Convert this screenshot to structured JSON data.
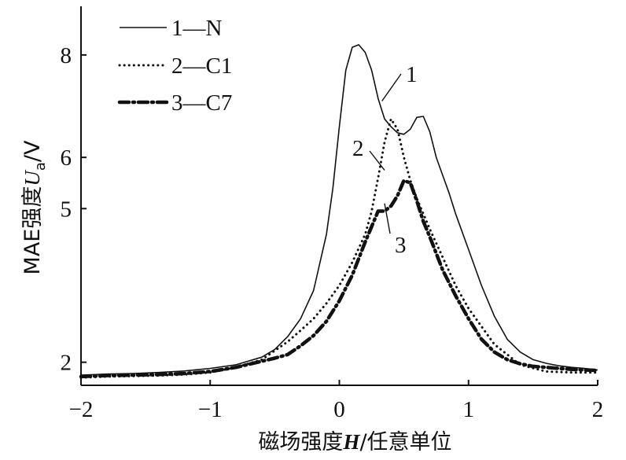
{
  "chart_data": {
    "type": "line",
    "xlabel_main": "磁场强度",
    "xlabel_symbol": "H",
    "xlabel_unit": "/任意单位",
    "ylabel_main": "MAE强度",
    "ylabel_symbol": "U",
    "ylabel_sub": "a",
    "ylabel_unit": "/V",
    "xlim": [
      -2,
      2
    ],
    "ylim": [
      1.55,
      8.95
    ],
    "x_ticks": [
      -2,
      -1,
      0,
      1,
      2
    ],
    "x_tick_labels": [
      "−2",
      "−1",
      "0",
      "1",
      "2"
    ],
    "y_ticks": [
      2,
      5,
      6,
      8
    ],
    "y_tick_labels": [
      "2",
      "5",
      "6",
      "8"
    ],
    "grid": false,
    "legend_position": "top-left",
    "series": [
      {
        "name": "1—N",
        "style": "solid",
        "x": [
          -2.0,
          -1.8,
          -1.6,
          -1.4,
          -1.2,
          -1.0,
          -0.8,
          -0.6,
          -0.5,
          -0.4,
          -0.3,
          -0.2,
          -0.1,
          -0.05,
          0.0,
          0.05,
          0.1,
          0.15,
          0.2,
          0.25,
          0.3,
          0.35,
          0.4,
          0.45,
          0.5,
          0.55,
          0.6,
          0.65,
          0.7,
          0.75,
          0.8,
          0.85,
          0.9,
          1.0,
          1.1,
          1.2,
          1.3,
          1.4,
          1.5,
          1.6,
          1.7,
          1.8,
          1.9,
          2.0
        ],
        "y": [
          1.75,
          1.77,
          1.78,
          1.8,
          1.83,
          1.88,
          1.95,
          2.1,
          2.25,
          2.5,
          2.85,
          3.4,
          4.5,
          5.4,
          6.6,
          7.7,
          8.15,
          8.2,
          8.05,
          7.7,
          7.15,
          6.75,
          6.6,
          6.48,
          6.45,
          6.55,
          6.78,
          6.8,
          6.5,
          6.0,
          5.65,
          5.3,
          4.9,
          4.2,
          3.5,
          2.9,
          2.45,
          2.2,
          2.05,
          1.98,
          1.93,
          1.9,
          1.88,
          1.85
        ]
      },
      {
        "name": "2—C1",
        "style": "dotted",
        "x": [
          -2.0,
          -1.8,
          -1.6,
          -1.4,
          -1.2,
          -1.0,
          -0.8,
          -0.6,
          -0.4,
          -0.3,
          -0.2,
          -0.1,
          0.0,
          0.1,
          0.2,
          0.25,
          0.3,
          0.35,
          0.4,
          0.45,
          0.5,
          0.55,
          0.6,
          0.7,
          0.8,
          0.9,
          1.0,
          1.2,
          1.4,
          1.6,
          1.8,
          2.0
        ],
        "y": [
          1.7,
          1.72,
          1.73,
          1.74,
          1.76,
          1.8,
          1.9,
          2.05,
          2.4,
          2.62,
          2.85,
          3.15,
          3.5,
          3.95,
          4.5,
          4.95,
          5.6,
          6.3,
          6.75,
          6.55,
          6.0,
          5.55,
          5.2,
          4.6,
          4.05,
          3.5,
          3.05,
          2.35,
          1.95,
          1.82,
          1.8,
          1.8
        ]
      },
      {
        "name": "3—C7",
        "style": "dash-dot",
        "x": [
          -2.0,
          -1.8,
          -1.6,
          -1.4,
          -1.2,
          -1.0,
          -0.8,
          -0.6,
          -0.5,
          -0.4,
          -0.3,
          -0.2,
          -0.1,
          0.0,
          0.1,
          0.2,
          0.3,
          0.35,
          0.4,
          0.45,
          0.5,
          0.55,
          0.6,
          0.65,
          0.7,
          0.8,
          0.9,
          1.0,
          1.1,
          1.2,
          1.3,
          1.4,
          1.5,
          1.6,
          1.7,
          1.8,
          1.9,
          2.0
        ],
        "y": [
          1.72,
          1.74,
          1.75,
          1.76,
          1.78,
          1.82,
          1.9,
          2.02,
          2.08,
          2.15,
          2.32,
          2.52,
          2.8,
          3.2,
          3.7,
          4.35,
          4.95,
          4.95,
          5.05,
          5.25,
          5.55,
          5.5,
          5.15,
          4.75,
          4.45,
          3.8,
          3.3,
          2.85,
          2.45,
          2.2,
          2.05,
          1.97,
          1.92,
          1.9,
          1.88,
          1.86,
          1.85,
          1.84
        ]
      }
    ],
    "annotations": [
      {
        "label": "1",
        "series": "1—N",
        "at_x": 0.33,
        "at_y": 7.1
      },
      {
        "label": "2",
        "series": "2—C1",
        "at_x": 0.35,
        "at_y": 5.75
      },
      {
        "label": "3",
        "series": "3—C7",
        "at_x": 0.35,
        "at_y": 5.1
      }
    ]
  }
}
